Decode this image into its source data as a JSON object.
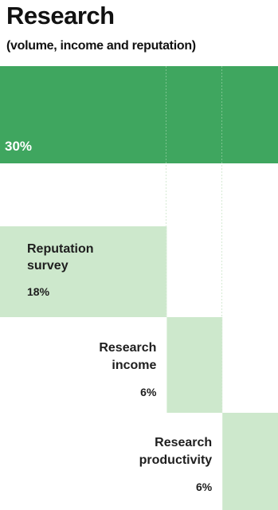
{
  "title": "Research",
  "subtitle": "(volume, income and reputation)",
  "colors": {
    "total": "#3fa65f",
    "component": "#cde8cc",
    "divider": "#d6ead4",
    "white_text": "#ffffff",
    "dark_text": "#1e1e1e"
  },
  "chart_data": {
    "type": "bar",
    "title": "Research",
    "subtitle": "(volume, income and reputation)",
    "total": {
      "label": "30%",
      "value": 30
    },
    "components": [
      {
        "name": [
          "Reputation",
          "survey"
        ],
        "label": "18%",
        "value": 18
      },
      {
        "name": [
          "Research",
          "income"
        ],
        "label": "6%",
        "value": 6
      },
      {
        "name": [
          "Research",
          "productivity"
        ],
        "label": "6%",
        "value": 6
      }
    ],
    "unit": "%"
  }
}
